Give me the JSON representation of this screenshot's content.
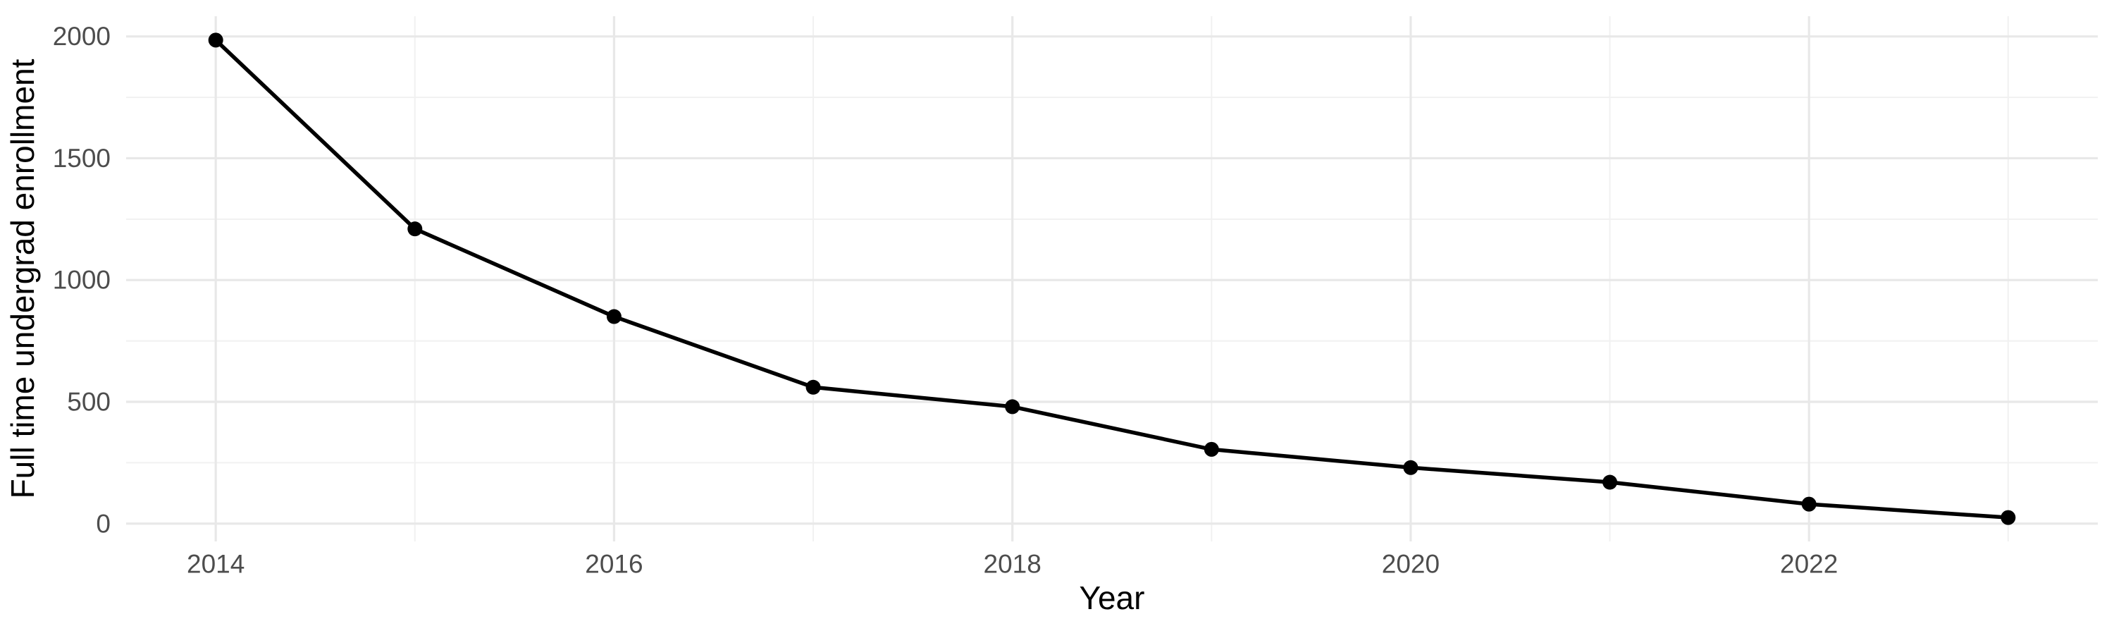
{
  "chart_data": {
    "type": "line",
    "title": "",
    "xlabel": "Year",
    "ylabel": "Full time undergrad enrollment",
    "x": [
      2014,
      2015,
      2016,
      2017,
      2018,
      2019,
      2020,
      2021,
      2022,
      2023
    ],
    "series": [
      {
        "name": "Full time undergrad enrollment",
        "values": [
          1985,
          1210,
          850,
          560,
          480,
          305,
          230,
          170,
          80,
          25
        ]
      }
    ],
    "x_ticks": [
      2014,
      2016,
      2018,
      2020,
      2022
    ],
    "y_ticks": [
      0,
      500,
      1000,
      1500,
      2000
    ],
    "x_minor_gridlines": [
      2015,
      2017,
      2019,
      2021,
      2023
    ],
    "y_minor_gridlines": [
      250,
      750,
      1250,
      1750
    ],
    "xlim": [
      2013.55,
      2023.45
    ],
    "ylim": [
      -73,
      2083
    ],
    "grid": "major and minor gridlines, both axes, light gray on white",
    "legend": "none",
    "marker": "filled-circle",
    "colors": {
      "background": "#FFFFFF",
      "line": "#000000",
      "point": "#000000",
      "grid_major": "#E8E8E8",
      "grid_minor": "#F1F1F1",
      "tick_label": "#4D4D4D",
      "axis_title": "#000000"
    }
  }
}
